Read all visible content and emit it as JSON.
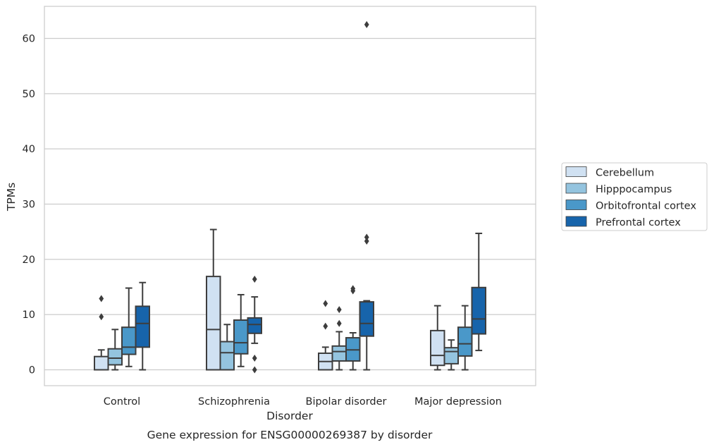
{
  "chart_data": {
    "type": "box",
    "title": "",
    "caption": "Gene expression for ENSG00000269387 by disorder",
    "xlabel": "Disorder",
    "ylabel": "TPMs",
    "ylim": [
      -3,
      65.5
    ],
    "yticks": [
      0,
      10,
      20,
      30,
      40,
      50,
      60
    ],
    "grid": "horizontal",
    "legend_position": "right",
    "categories": [
      "Control",
      "Schizophrenia",
      "Bipolar disorder",
      "Major depression"
    ],
    "series": [
      {
        "name": "Cerebellum",
        "color": "#d0e1f2",
        "boxes": [
          {
            "whislo": 0,
            "q1": 0,
            "med": 0,
            "q3": 2.4,
            "whishi": 3.6,
            "fliers": [
              9.6,
              12.9
            ]
          },
          {
            "whislo": 0,
            "q1": 0,
            "med": 7.3,
            "q3": 16.9,
            "whishi": 25.4,
            "fliers": []
          },
          {
            "whislo": 0,
            "q1": 0,
            "med": 1.5,
            "q3": 3.0,
            "whishi": 4.1,
            "fliers": [
              7.9,
              12.0
            ]
          },
          {
            "whislo": 0,
            "q1": 0.8,
            "med": 2.6,
            "q3": 7.1,
            "whishi": 11.6,
            "fliers": []
          }
        ]
      },
      {
        "name": "Hipppocampus",
        "color": "#94c4df",
        "boxes": [
          {
            "whislo": 0,
            "q1": 0.9,
            "med": 2.1,
            "q3": 3.8,
            "whishi": 7.3,
            "fliers": []
          },
          {
            "whislo": 0,
            "q1": 0,
            "med": 3.1,
            "q3": 5.1,
            "whishi": 8.2,
            "fliers": []
          },
          {
            "whislo": 0,
            "q1": 1.6,
            "med": 3.3,
            "q3": 4.3,
            "whishi": 6.9,
            "fliers": [
              8.4,
              10.9
            ]
          },
          {
            "whislo": 0,
            "q1": 1.1,
            "med": 3.3,
            "q3": 4.0,
            "whishi": 5.4,
            "fliers": []
          }
        ]
      },
      {
        "name": "Orbitofrontal cortex",
        "color": "#4a98c9",
        "boxes": [
          {
            "whislo": 0.6,
            "q1": 2.8,
            "med": 4.1,
            "q3": 7.7,
            "whishi": 14.8,
            "fliers": []
          },
          {
            "whislo": 0.6,
            "q1": 2.9,
            "med": 4.9,
            "q3": 9.0,
            "whishi": 13.6,
            "fliers": []
          },
          {
            "whislo": 0,
            "q1": 1.6,
            "med": 3.6,
            "q3": 5.8,
            "whishi": 6.7,
            "fliers": [
              14.3,
              14.7
            ]
          },
          {
            "whislo": 0,
            "q1": 2.5,
            "med": 4.7,
            "q3": 7.7,
            "whishi": 11.6,
            "fliers": []
          }
        ]
      },
      {
        "name": "Prefrontal cortex",
        "color": "#1764ab",
        "boxes": [
          {
            "whislo": 0,
            "q1": 4.1,
            "med": 8.4,
            "q3": 11.5,
            "whishi": 15.8,
            "fliers": []
          },
          {
            "whislo": 4.8,
            "q1": 6.6,
            "med": 8.2,
            "q3": 9.4,
            "whishi": 13.2,
            "fliers": [
              0,
              2.1,
              16.4
            ]
          },
          {
            "whislo": 0,
            "q1": 6.1,
            "med": 8.4,
            "q3": 12.3,
            "whishi": 12.5,
            "fliers": [
              23.3,
              24.0,
              62.5
            ]
          },
          {
            "whislo": 3.5,
            "q1": 6.5,
            "med": 9.2,
            "q3": 14.9,
            "whishi": 24.7,
            "fliers": []
          }
        ]
      }
    ]
  }
}
